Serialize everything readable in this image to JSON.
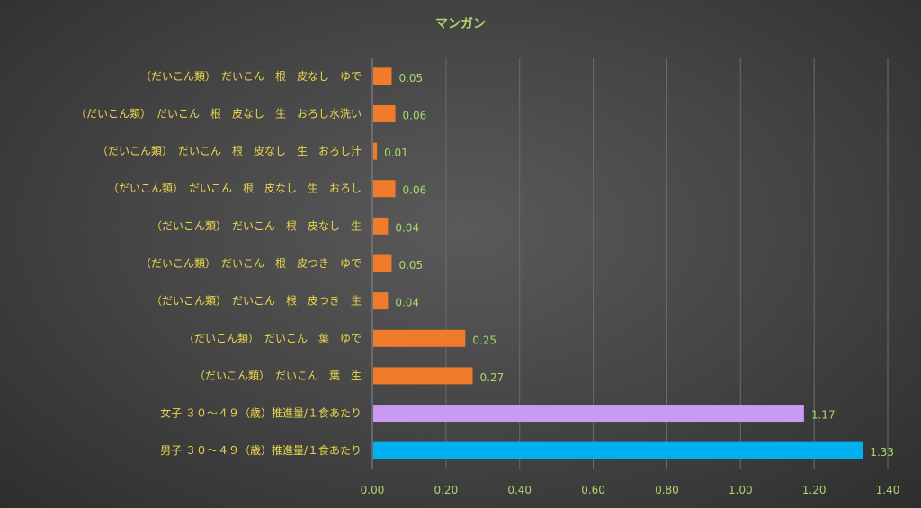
{
  "chart_data": {
    "type": "bar",
    "orientation": "horizontal",
    "title": "マンガン",
    "categories": [
      "（だいこん類）　だいこん　根　皮なし　ゆで",
      "（だいこん類）　だいこん　根　皮なし　生　おろし水洗い",
      "（だいこん類）　だいこん　根　皮なし　生　おろし汁",
      "（だいこん類）　だいこん　根　皮なし　生　おろし",
      "（だいこん類）　だいこん　根　皮なし　生",
      "（だいこん類）　だいこん　根　皮つき　ゆで",
      "（だいこん類）　だいこん　根　皮つき　生",
      "（だいこん類）　だいこん　葉　ゆで",
      "（だいこん類）　だいこん　葉　生",
      "女子 ３０～４９（歳）推進量/１食あたり",
      "男子 ３０～４９（歳）推進量/１食あたり"
    ],
    "values": [
      0.05,
      0.06,
      0.01,
      0.06,
      0.04,
      0.05,
      0.04,
      0.25,
      0.27,
      1.17,
      1.33
    ],
    "value_labels": [
      "0.05",
      "0.06",
      "0.01",
      "0.06",
      "0.04",
      "0.05",
      "0.04",
      "0.25",
      "0.27",
      "1.17",
      "1.33"
    ],
    "bar_colors": [
      "#f07b2b",
      "#f07b2b",
      "#f07b2b",
      "#f07b2b",
      "#f07b2b",
      "#f07b2b",
      "#f07b2b",
      "#f07b2b",
      "#f07b2b",
      "#c89af0",
      "#00b0f0"
    ],
    "xlim": [
      0,
      1.4
    ],
    "x_ticks": [
      0,
      0.2,
      0.4,
      0.6,
      0.8,
      1.0,
      1.2,
      1.4
    ],
    "x_tick_labels": [
      "0.00",
      "0.20",
      "0.40",
      "0.60",
      "0.80",
      "1.00",
      "1.20",
      "1.40"
    ],
    "grid": true,
    "legend": "none"
  }
}
